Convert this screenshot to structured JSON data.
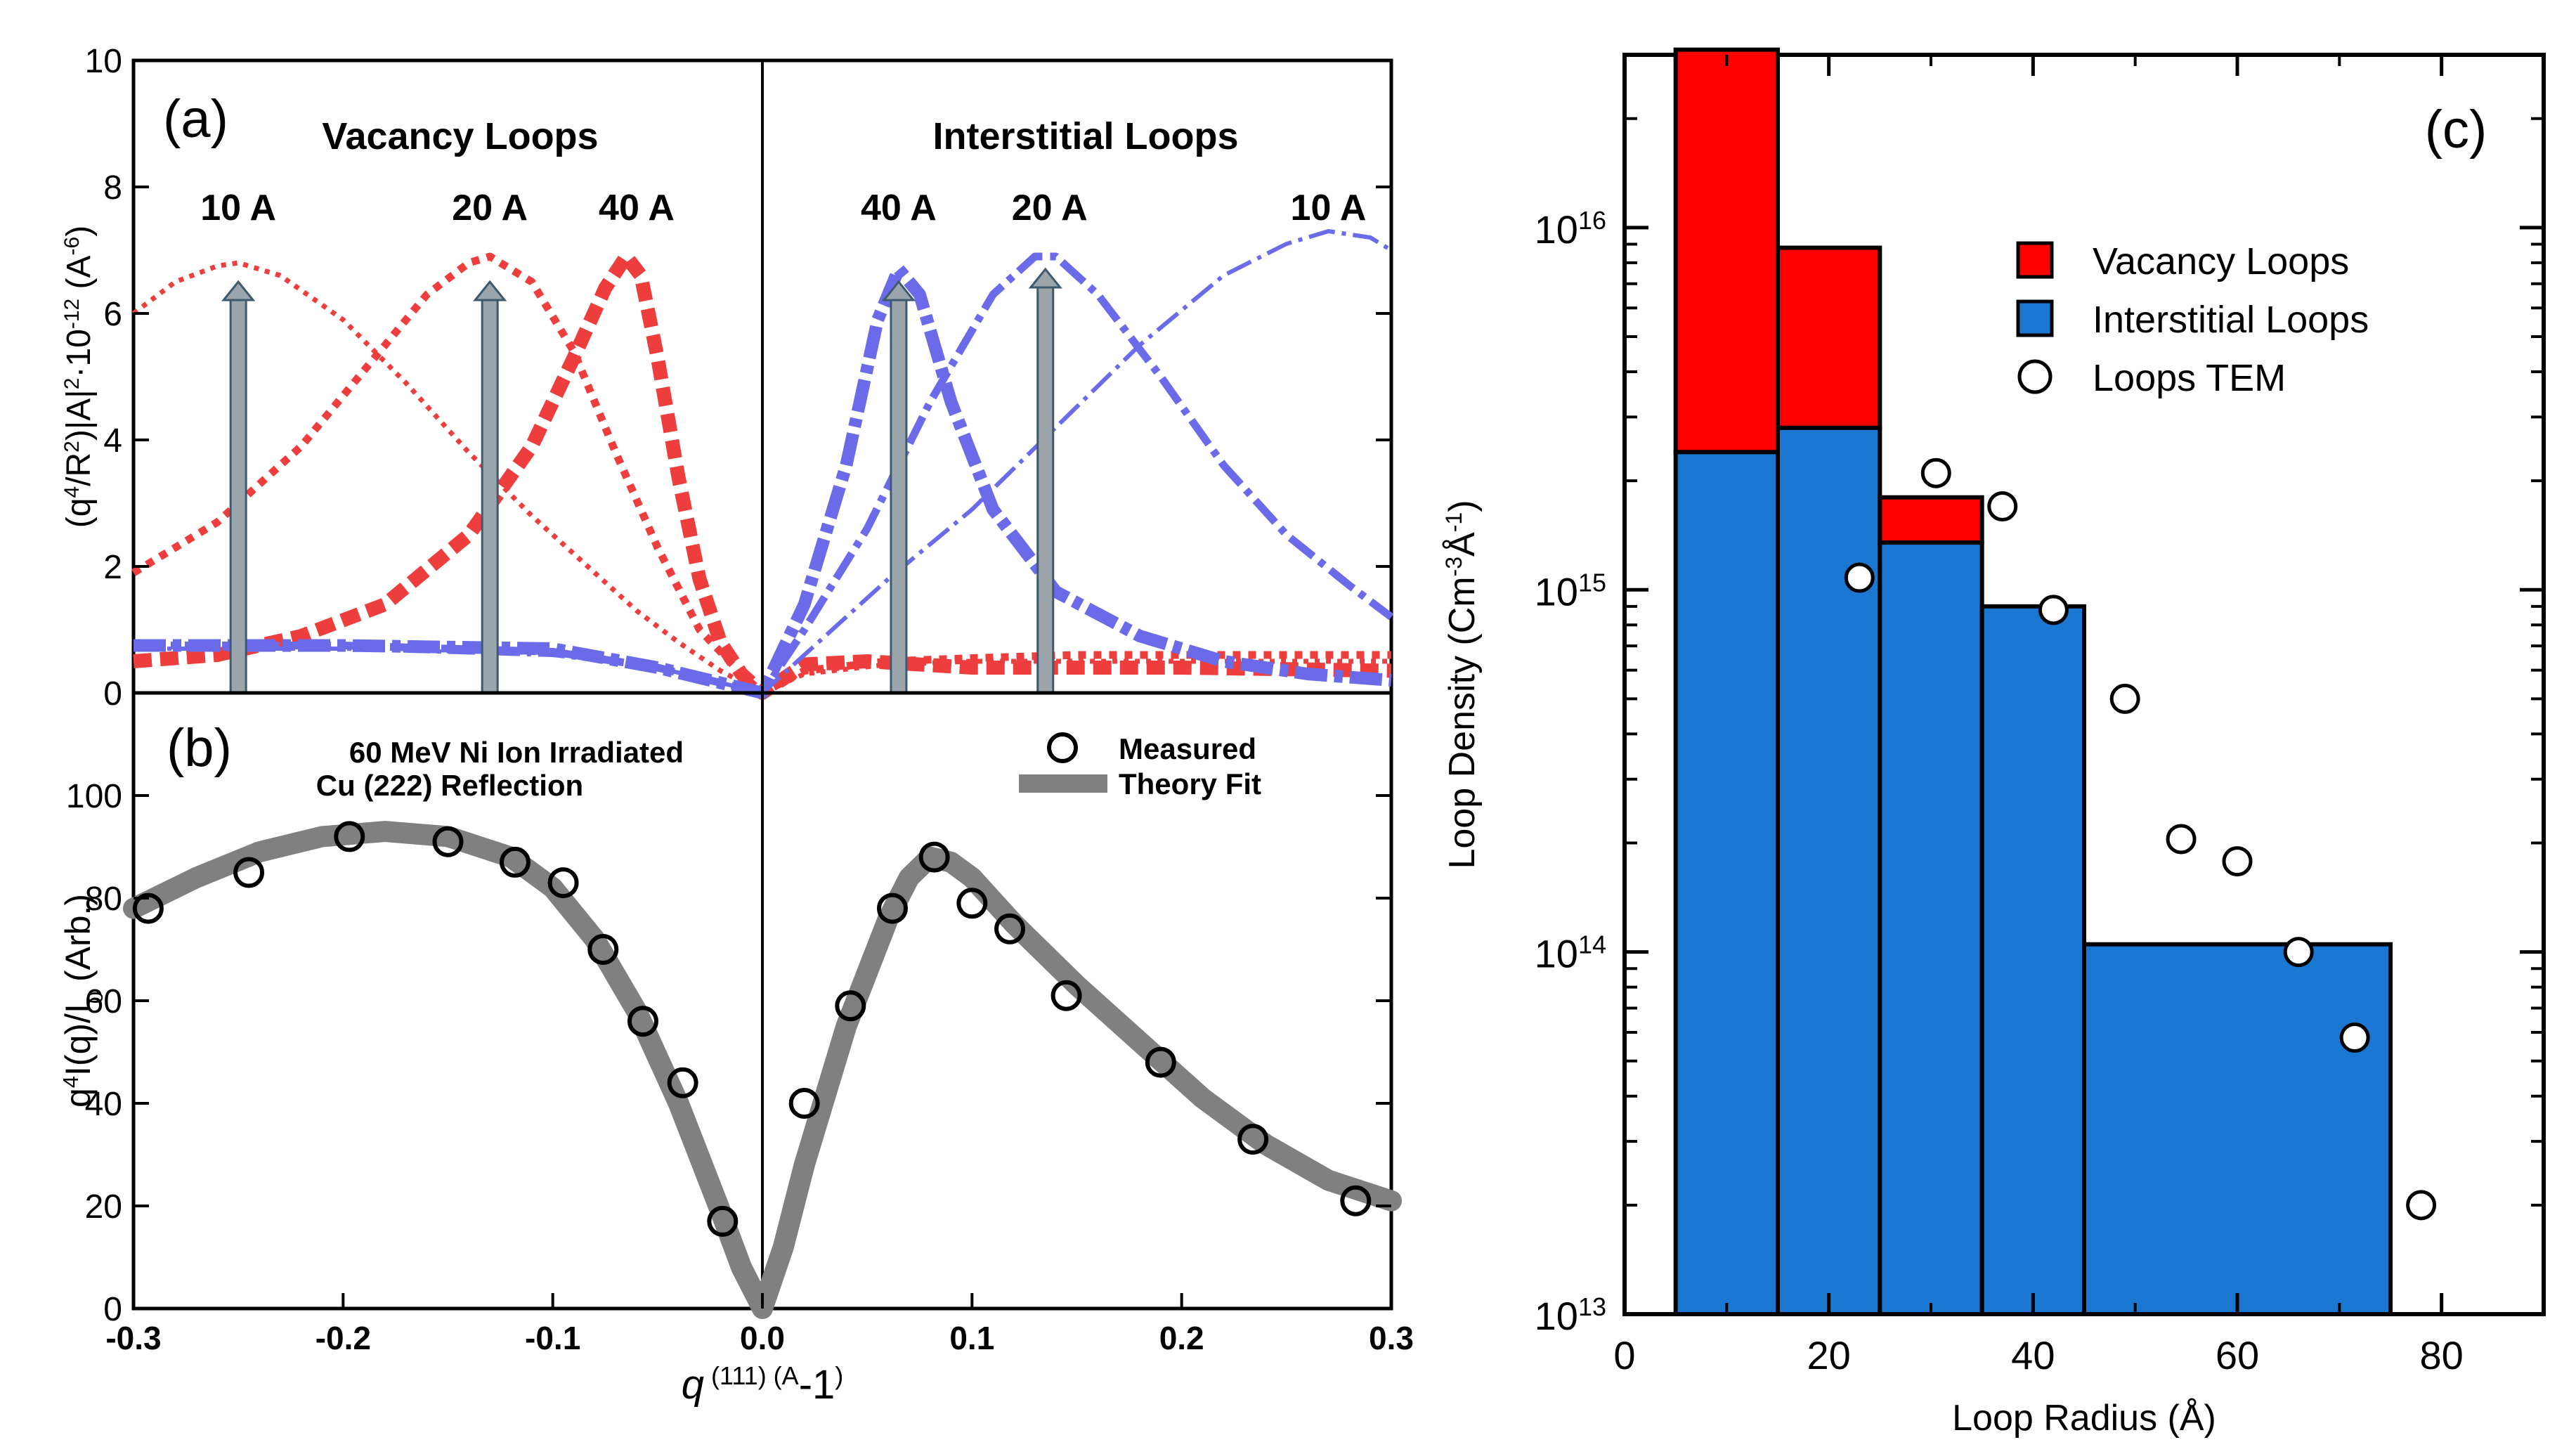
{
  "panels": {
    "a": {
      "label": "(a)",
      "type": "line",
      "title_left": "Vacancy Loops",
      "title_right": "Interstitial Loops",
      "ylabel_parts": [
        "(q",
        "4",
        "/R",
        "2",
        ")|A|",
        "2",
        "·10",
        "-12",
        " (A",
        "-6",
        ")"
      ],
      "ylim": [
        0,
        10
      ],
      "yticks": [
        "0",
        "2",
        "4",
        "6",
        "8",
        "10"
      ],
      "xlim": [
        -0.3,
        0.3
      ],
      "size_labels": [
        {
          "text": "10 A",
          "x": -0.25
        },
        {
          "text": "20 A",
          "x": -0.13
        },
        {
          "text": "40 A",
          "x": -0.06
        },
        {
          "text": "40 A",
          "x": 0.065
        },
        {
          "text": "20 A",
          "x": 0.137
        },
        {
          "text": "10 A",
          "x": 0.27
        }
      ],
      "arrows": [
        {
          "x": -0.25,
          "y0": 0,
          "y1": 6.5
        },
        {
          "x": -0.13,
          "y0": 0,
          "y1": 6.5
        },
        {
          "x": 0.065,
          "y0": 0,
          "y1": 6.5
        },
        {
          "x": 0.135,
          "y0": 0,
          "y1": 6.7
        }
      ],
      "series": [
        {
          "name": "Vacancy 10 A",
          "color": "#ee3d3d",
          "style": "dotted-thin",
          "x": [
            -0.3,
            -0.28,
            -0.26,
            -0.25,
            -0.23,
            -0.2,
            -0.17,
            -0.14,
            -0.11,
            -0.08,
            -0.06,
            -0.04,
            -0.02,
            0,
            0.02,
            0.06,
            0.1,
            0.15,
            0.2,
            0.25,
            0.3
          ],
          "y": [
            6.0,
            6.5,
            6.75,
            6.8,
            6.6,
            5.9,
            4.9,
            3.8,
            2.8,
            1.9,
            1.3,
            0.8,
            0.35,
            0,
            0.3,
            0.45,
            0.5,
            0.5,
            0.5,
            0.5,
            0.5
          ]
        },
        {
          "name": "Vacancy 20 A",
          "color": "#ee3d3d",
          "style": "dotted-medium",
          "x": [
            -0.3,
            -0.26,
            -0.22,
            -0.19,
            -0.16,
            -0.14,
            -0.13,
            -0.11,
            -0.09,
            -0.07,
            -0.05,
            -0.03,
            -0.01,
            0,
            0.02,
            0.06,
            0.1,
            0.15,
            0.2,
            0.25,
            0.3
          ],
          "y": [
            1.9,
            2.7,
            3.9,
            5.1,
            6.3,
            6.8,
            6.9,
            6.5,
            5.4,
            3.8,
            2.3,
            1.0,
            0.3,
            0,
            0.35,
            0.5,
            0.55,
            0.6,
            0.6,
            0.6,
            0.6
          ]
        },
        {
          "name": "Vacancy 40 A",
          "color": "#ee3d3d",
          "style": "dashed-thick",
          "x": [
            -0.3,
            -0.26,
            -0.22,
            -0.18,
            -0.14,
            -0.11,
            -0.09,
            -0.075,
            -0.065,
            -0.058,
            -0.05,
            -0.04,
            -0.03,
            -0.02,
            -0.01,
            0,
            0.02,
            0.05,
            0.1,
            0.15,
            0.2,
            0.3
          ],
          "y": [
            0.5,
            0.6,
            0.9,
            1.4,
            2.5,
            3.9,
            5.3,
            6.4,
            6.9,
            6.6,
            5.3,
            3.4,
            1.8,
            0.8,
            0.3,
            0,
            0.45,
            0.5,
            0.4,
            0.4,
            0.4,
            0.35
          ]
        },
        {
          "name": "Interstitial 10 A",
          "color": "#6b6bea",
          "style": "dashdot-thin",
          "x": [
            -0.3,
            -0.2,
            -0.1,
            -0.05,
            0,
            0.03,
            0.06,
            0.1,
            0.14,
            0.18,
            0.22,
            0.25,
            0.27,
            0.29,
            0.3
          ],
          "y": [
            0.7,
            0.7,
            0.6,
            0.4,
            0,
            0.9,
            1.8,
            2.9,
            4.2,
            5.5,
            6.6,
            7.1,
            7.3,
            7.2,
            7.0
          ]
        },
        {
          "name": "Interstitial 20 A",
          "color": "#6b6bea",
          "style": "dashdot-medium",
          "x": [
            -0.3,
            -0.2,
            -0.1,
            -0.05,
            0,
            0.02,
            0.05,
            0.08,
            0.11,
            0.13,
            0.14,
            0.16,
            0.19,
            0.22,
            0.25,
            0.28,
            0.3
          ],
          "y": [
            0.75,
            0.75,
            0.65,
            0.4,
            0,
            1.0,
            2.6,
            4.6,
            6.3,
            6.9,
            6.9,
            6.3,
            5.0,
            3.6,
            2.5,
            1.7,
            1.2
          ]
        },
        {
          "name": "Interstitial 40 A",
          "color": "#6b6bea",
          "style": "dashdot-thick",
          "x": [
            -0.3,
            -0.2,
            -0.1,
            -0.05,
            0,
            0.02,
            0.04,
            0.055,
            0.065,
            0.075,
            0.09,
            0.11,
            0.14,
            0.18,
            0.22,
            0.26,
            0.3
          ],
          "y": [
            0.75,
            0.75,
            0.7,
            0.4,
            0,
            1.4,
            3.6,
            5.9,
            6.7,
            6.3,
            4.6,
            2.9,
            1.6,
            0.9,
            0.5,
            0.3,
            0.2
          ]
        }
      ]
    },
    "b": {
      "label": "(b)",
      "type": "scatter+line",
      "annotation_lines": [
        "60 MeV Ni Ion Irradiated",
        "Cu (222) Reflection"
      ],
      "legend": [
        {
          "name": "Measured",
          "marker": "open-circle"
        },
        {
          "name": "Theory Fit",
          "marker": "gray-line"
        }
      ],
      "ylabel_parts": [
        "q",
        "4",
        "I(q)/I",
        "0",
        " (Arb.)"
      ],
      "ylim": [
        0,
        120
      ],
      "yticks": [
        "0",
        "20",
        "40",
        "60",
        "80",
        "100"
      ],
      "xlabel_parts": [
        "q",
        " (111) (A",
        "-1",
        ")"
      ],
      "xlim": [
        -0.3,
        0.3
      ],
      "xticks": [
        "-0.3",
        "-0.2",
        "-0.1",
        "0.0",
        "0.1",
        "0.2",
        "0.3"
      ],
      "measured": {
        "x": [
          -0.293,
          -0.245,
          -0.197,
          -0.15,
          -0.118,
          -0.095,
          -0.076,
          -0.057,
          -0.038,
          -0.019,
          0.02,
          0.042,
          0.062,
          0.082,
          0.1,
          0.118,
          0.145,
          0.19,
          0.234,
          0.283
        ],
        "y": [
          78,
          85,
          92,
          91,
          87,
          83,
          70,
          56,
          44,
          17,
          40,
          59,
          78,
          88,
          79,
          74,
          61,
          48,
          33,
          21
        ]
      },
      "fit": {
        "x": [
          -0.3,
          -0.27,
          -0.24,
          -0.21,
          -0.18,
          -0.15,
          -0.12,
          -0.1,
          -0.08,
          -0.06,
          -0.04,
          -0.02,
          -0.01,
          0,
          0.01,
          0.02,
          0.04,
          0.06,
          0.07,
          0.08,
          0.09,
          0.1,
          0.12,
          0.15,
          0.18,
          0.21,
          0.24,
          0.27,
          0.3
        ],
        "y": [
          78,
          84,
          89,
          92,
          93,
          92,
          88,
          82,
          72,
          58,
          40,
          19,
          8,
          0,
          12,
          28,
          55,
          76,
          84,
          88,
          87,
          84,
          75,
          63,
          52,
          41,
          32,
          25,
          21
        ]
      }
    },
    "c": {
      "label": "(c)",
      "type": "bar",
      "scale": "log",
      "ylabel_parts": [
        "Loop Density (Cm",
        "-3",
        "Å",
        "-1",
        ")"
      ],
      "ylim": [
        10000000000000.0,
        3e+16
      ],
      "ytick_exps": [
        "13",
        "14",
        "15",
        "16"
      ],
      "ytick_base": "10",
      "xlabel": "Loop Radius (Å)",
      "xlim": [
        0,
        90
      ],
      "xticks": [
        "0",
        "20",
        "40",
        "60",
        "80"
      ],
      "legend": [
        {
          "name": "Vacancy Loops",
          "color": "#ff0000",
          "marker": "square"
        },
        {
          "name": "Interstitial Loops",
          "color": "#1a77d2",
          "marker": "square"
        },
        {
          "name": "Loops TEM",
          "color": "#ffffff",
          "marker": "open-circle"
        }
      ],
      "bars": [
        {
          "x0": 5,
          "x1": 15,
          "interstitial": 2400000000000000.0,
          "total": 3.1e+16
        },
        {
          "x0": 15,
          "x1": 25,
          "interstitial": 2800000000000000.0,
          "total": 8800000000000000.0
        },
        {
          "x0": 25,
          "x1": 35,
          "interstitial": 1350000000000000.0,
          "total": 1800000000000000.0
        },
        {
          "x0": 35,
          "x1": 45,
          "interstitial": 900000000000000.0,
          "total": 900000000000000.0
        },
        {
          "x0": 45,
          "x1": 75,
          "interstitial": 105000000000000.0,
          "total": 105000000000000.0
        }
      ],
      "tem_points": {
        "x": [
          23,
          30.5,
          37,
          42,
          49,
          54.5,
          60,
          66,
          71.5,
          78
        ],
        "y": [
          1080000000000000.0,
          2100000000000000.0,
          1700000000000000.0,
          880000000000000.0,
          500000000000000.0,
          205000000000000.0,
          178000000000000.0,
          100000000000000.0,
          58000000000000.0,
          20000000000000.0
        ]
      },
      "colors": {
        "vacancy": "#ff0000",
        "interstitial": "#1a77d2"
      }
    }
  }
}
